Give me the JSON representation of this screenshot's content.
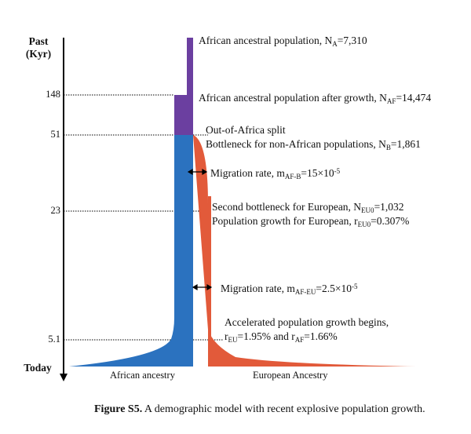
{
  "axis": {
    "title_line1": "Past",
    "title_line2": "(Kyr)",
    "today_label": "Today",
    "ticks": [
      "148",
      "51",
      "23",
      "5.1"
    ]
  },
  "labels": {
    "african_ancestral": {
      "text": "African ancestral population, N",
      "sub": "A",
      "tail": "=7,310"
    },
    "after_growth": {
      "text": "African ancestral population after growth, N",
      "sub": "AF",
      "tail": "=14,474"
    },
    "ooa_split": "Out-of-Africa split",
    "bottleneck": {
      "text": "Bottleneck for non-African populations, N",
      "sub": "B",
      "tail": "=1,861"
    },
    "migration_b": {
      "text": "Migration rate, m",
      "sub": "AF-B",
      "mid": "=15×10",
      "sup": "-5"
    },
    "second_bottleneck": {
      "text": "Second bottleneck for European, N",
      "sub": "EU0",
      "tail": "=1,032"
    },
    "growth_eu": {
      "text": "Population growth for European, r",
      "sub": "EU0",
      "tail": "=0.307%"
    },
    "migration_eu": {
      "text": "Migration rate, m",
      "sub": "AF-EU",
      "mid": "=2.5×10",
      "sup": "-5"
    },
    "accelerated": "Accelerated population growth begins,",
    "rates": {
      "r1": "r",
      "sub1": "EU",
      "mid": "=1.95% and r",
      "sub2": "AF",
      "tail": "=1.66%"
    },
    "african_ancestry": "African ancestry",
    "european_ancestry": "European Ancestry"
  },
  "caption": {
    "bold": "Figure S5.",
    "text": " A demographic model with recent explosive population growth."
  },
  "colors": {
    "purple": "#6b3fa0",
    "blue": "#2b72bf",
    "red": "#e25a3a",
    "axis": "#000000"
  }
}
